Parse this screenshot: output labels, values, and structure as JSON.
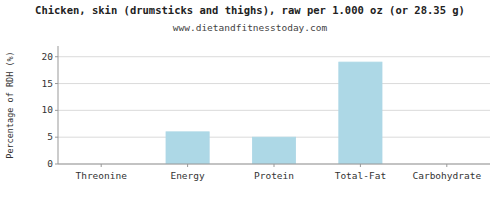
{
  "chart_data": {
    "type": "bar",
    "title": "Chicken, skin (drumsticks and thighs), raw per 1.000 oz (or 28.35 g)",
    "subtitle": "www.dietandfitnesstoday.com",
    "categories": [
      "Threonine",
      "Energy",
      "Protein",
      "Total-Fat",
      "Carbohydrate"
    ],
    "values": [
      0.0,
      6.0,
      5.0,
      19.0,
      0.0
    ],
    "color": "#add8e6",
    "ylabel": "Percentage of RDH (%)",
    "ylim": [
      0,
      22
    ],
    "yticks": [
      0,
      5,
      10,
      15,
      20
    ],
    "grid": true
  }
}
